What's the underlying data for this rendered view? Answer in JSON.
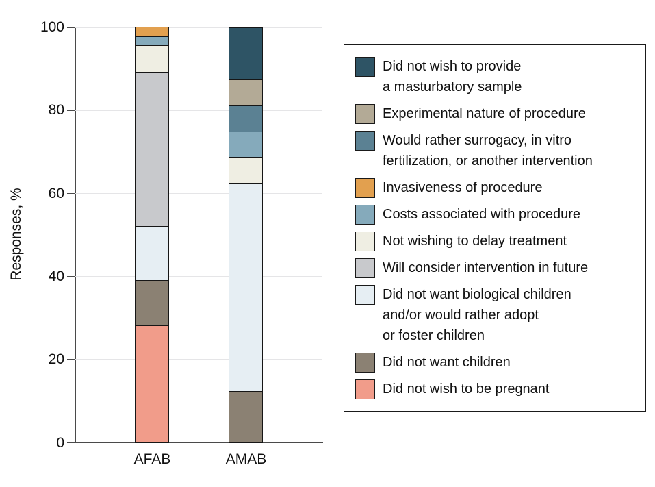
{
  "chart_data": {
    "type": "bar",
    "variant": "stacked-vertical",
    "ylabel": "Responses, %",
    "ylim": [
      0,
      100
    ],
    "yticks": [
      0,
      20,
      40,
      60,
      80,
      100
    ],
    "grid": "horizontal",
    "legend_position": "right",
    "categories": [
      "AFAB",
      "AMAB"
    ],
    "stack_order": "bottom-to-top",
    "series": [
      {
        "name": "Did not wish to be pregnant",
        "color": "#f19c8a",
        "values": [
          28.3,
          0
        ]
      },
      {
        "name": "Did not want children",
        "color": "#8b8173",
        "values": [
          10.9,
          12.5
        ]
      },
      {
        "name": "Did not want biological children and/or would rather adopt or foster children",
        "color": "#e6eef3",
        "values": [
          13.0,
          50.0
        ]
      },
      {
        "name": "Will consider intervention in future",
        "color": "#c8c9cc",
        "values": [
          37.0,
          0
        ]
      },
      {
        "name": "Not wishing to delay treatment",
        "color": "#efeee3",
        "values": [
          6.5,
          6.25
        ]
      },
      {
        "name": "Costs associated with procedure",
        "color": "#85aabb",
        "values": [
          2.2,
          6.25
        ]
      },
      {
        "name": "Invasiveness of procedure",
        "color": "#e2a04f",
        "values": [
          2.2,
          0
        ]
      },
      {
        "name": "Would rather surrogacy, in vitro fertilization, or another intervention",
        "color": "#5b8193",
        "values": [
          0,
          6.25
        ]
      },
      {
        "name": "Experimental nature of procedure",
        "color": "#b3aa96",
        "values": [
          0,
          6.25
        ]
      },
      {
        "name": "Did not wish to provide a masturbatory sample",
        "color": "#2e5465",
        "values": [
          0,
          12.5
        ]
      }
    ],
    "legend": [
      {
        "color": "#2e5465",
        "lines": [
          "Did not wish to provide",
          "a masturbatory sample"
        ]
      },
      {
        "color": "#b3aa96",
        "lines": [
          "Experimental nature of procedure"
        ]
      },
      {
        "color": "#5b8193",
        "lines": [
          "Would rather surrogacy, in vitro",
          "fertilization, or another intervention"
        ]
      },
      {
        "color": "#e2a04f",
        "lines": [
          "Invasiveness of procedure"
        ]
      },
      {
        "color": "#85aabb",
        "lines": [
          "Costs associated with procedure"
        ]
      },
      {
        "color": "#efeee3",
        "lines": [
          "Not wishing to delay treatment"
        ]
      },
      {
        "color": "#c8c9cc",
        "lines": [
          "Will consider intervention in future"
        ]
      },
      {
        "color": "#e6eef3",
        "lines": [
          "Did not want biological children",
          "and/or would rather adopt",
          "or foster children"
        ]
      },
      {
        "color": "#8b8173",
        "lines": [
          "Did not want children"
        ]
      },
      {
        "color": "#f19c8a",
        "lines": [
          "Did not wish to be pregnant"
        ]
      }
    ]
  }
}
